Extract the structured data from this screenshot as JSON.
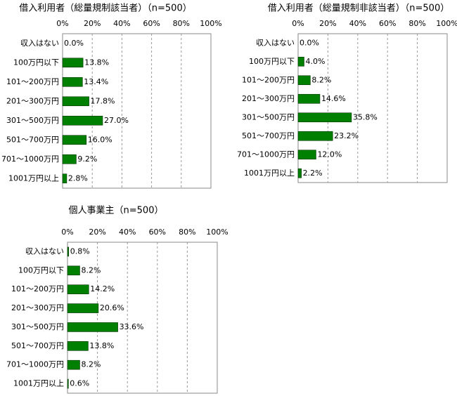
{
  "chart_data": [
    {
      "type": "barh",
      "title": "借入利用者（総量規制該当者）（n=500）",
      "categories": [
        "収入はない",
        "100万円以下",
        "101～200万円",
        "201～300万円",
        "301～500万円",
        "501～700万円",
        "701～1000万円",
        "1001万円以上"
      ],
      "values": [
        0.0,
        13.8,
        13.4,
        17.8,
        27.0,
        16.0,
        9.2,
        2.8
      ],
      "value_labels": [
        "0.0%",
        "13.8%",
        "13.4%",
        "17.8%",
        "27.0%",
        "16.0%",
        "9.2%",
        "2.8%"
      ],
      "color": "#008000",
      "xlim": [
        0,
        100
      ],
      "xticks": [
        {
          "value": 0,
          "label": "0%"
        },
        {
          "value": 20,
          "label": "20%"
        },
        {
          "value": 40,
          "label": "40%"
        },
        {
          "value": 60,
          "label": "60%"
        },
        {
          "value": 80,
          "label": "80%"
        },
        {
          "value": 100,
          "label": "100%"
        }
      ],
      "grid": true
    },
    {
      "type": "barh",
      "title": "借入利用者（総量規制非該当者）（n=500）",
      "categories": [
        "収入はない",
        "100万円以下",
        "101～200万円",
        "201～300万円",
        "301～500万円",
        "501～700万円",
        "701～1000万円",
        "1001万円以上"
      ],
      "values": [
        0.0,
        4.0,
        8.2,
        14.6,
        35.8,
        23.2,
        12.0,
        2.2
      ],
      "value_labels": [
        "0.0%",
        "4.0%",
        "8.2%",
        "14.6%",
        "35.8%",
        "23.2%",
        "12.0%",
        "2.2%"
      ],
      "color": "#008000",
      "xlim": [
        0,
        100
      ],
      "xticks": [
        {
          "value": 0,
          "label": "0%"
        },
        {
          "value": 20,
          "label": "20%"
        },
        {
          "value": 40,
          "label": "40%"
        },
        {
          "value": 60,
          "label": "60%"
        },
        {
          "value": 80,
          "label": "80%"
        },
        {
          "value": 100,
          "label": "100%"
        }
      ],
      "grid": true
    },
    {
      "type": "barh",
      "title": "個人事業主（n=500）",
      "categories": [
        "収入はない",
        "100万円以下",
        "101～200万円",
        "201～300万円",
        "301～500万円",
        "501～700万円",
        "701～1000万円",
        "1001万円以上"
      ],
      "values": [
        0.8,
        8.2,
        14.2,
        20.6,
        33.6,
        13.8,
        8.2,
        0.6
      ],
      "value_labels": [
        "0.8%",
        "8.2%",
        "14.2%",
        "20.6%",
        "33.6%",
        "13.8%",
        "8.2%",
        "0.6%"
      ],
      "color": "#008000",
      "xlim": [
        0,
        100
      ],
      "xticks": [
        {
          "value": 0,
          "label": "0%"
        },
        {
          "value": 20,
          "label": "20%"
        },
        {
          "value": 40,
          "label": "40%"
        },
        {
          "value": 60,
          "label": "60%"
        },
        {
          "value": 80,
          "label": "80%"
        },
        {
          "value": 100,
          "label": "100%"
        }
      ],
      "grid": true
    }
  ]
}
